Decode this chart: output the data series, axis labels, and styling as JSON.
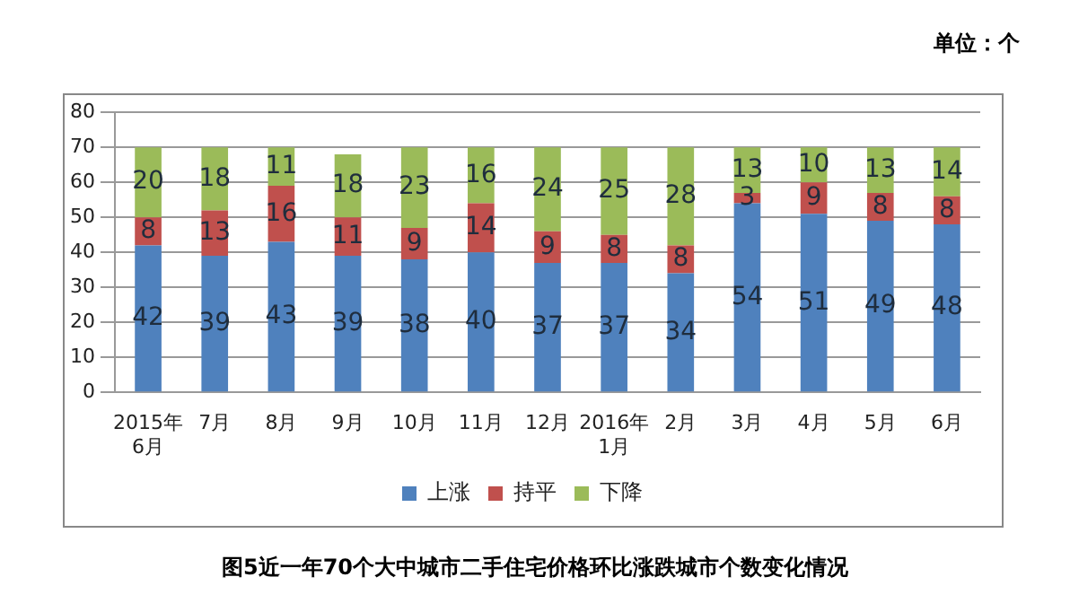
{
  "chart_data": {
    "type": "bar",
    "title": "图5近一年70个大中城市二手住宅价格环比涨跌城市个数变化情况",
    "annotations": [
      "单位：个"
    ],
    "categories": [
      "2015年\n6月",
      "7月",
      "8月",
      "9月",
      "10月",
      "11月",
      "12月",
      "2016年\n1月",
      "2月",
      "3月",
      "4月",
      "5月",
      "6月"
    ],
    "series": [
      {
        "name": "上涨",
        "color": "#4f81bd",
        "values": [
          42,
          39,
          43,
          39,
          38,
          40,
          37,
          37,
          34,
          54,
          51,
          49,
          48
        ]
      },
      {
        "name": "持平",
        "color": "#c0504d",
        "values": [
          8,
          13,
          16,
          11,
          9,
          14,
          9,
          8,
          8,
          3,
          9,
          8,
          8
        ]
      },
      {
        "name": "下降",
        "color": "#9bbb59",
        "values": [
          20,
          18,
          11,
          18,
          23,
          16,
          24,
          25,
          28,
          13,
          10,
          13,
          14
        ]
      }
    ],
    "stacked": true,
    "ylim": [
      0,
      80
    ],
    "yticks": [
      0,
      10,
      20,
      30,
      40,
      50,
      60,
      70,
      80
    ],
    "grid": "y",
    "legend": "bottom",
    "data_labels": true
  }
}
